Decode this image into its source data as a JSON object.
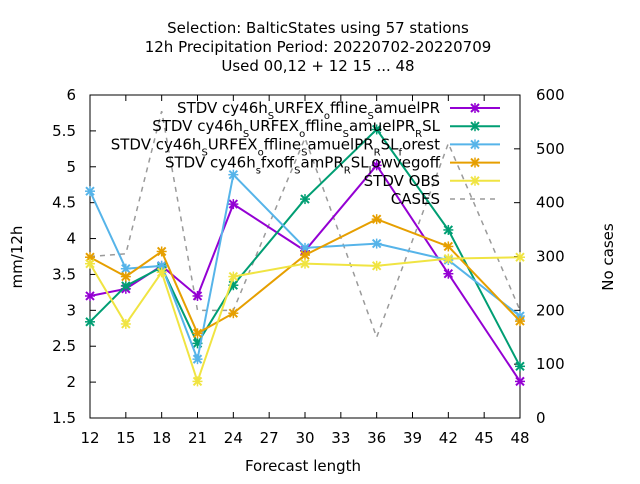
{
  "title_lines": [
    "Selection: BalticStates using    57 stations",
    "12h Precipitation    Period: 20220702-20220709",
    "Used  00,12  + 12 15 ... 48"
  ],
  "chart_data": {
    "type": "line",
    "xlabel": "Forecast length",
    "ylabel": "mm/12h",
    "y2label": "No cases",
    "x_ticks": [
      12,
      15,
      18,
      21,
      24,
      27,
      30,
      33,
      36,
      39,
      42,
      45,
      48
    ],
    "xlim": [
      12,
      48
    ],
    "ylim": [
      1.5,
      6
    ],
    "y_ticks": [
      1.5,
      2,
      2.5,
      3,
      3.5,
      4,
      4.5,
      5,
      5.5,
      6
    ],
    "y2lim": [
      0,
      600
    ],
    "y2_ticks": [
      0,
      100,
      200,
      300,
      400,
      500,
      600
    ],
    "grid": false,
    "legend_position": "top-right",
    "x": [
      12,
      15,
      18,
      21,
      24,
      30,
      36,
      42,
      48
    ],
    "series": [
      {
        "name": "STDV cy46h_S URFEX_o ffline_S amuelPR",
        "legend": [
          {
            "t": "STDV cy46h"
          },
          {
            "t": "S",
            "sub": true
          },
          {
            "t": "URFEX"
          },
          {
            "t": "o",
            "sub": true
          },
          {
            "t": "ffline"
          },
          {
            "t": "S",
            "sub": true
          },
          {
            "t": "amuelPR"
          }
        ],
        "color": "#9400d3",
        "marker": "x",
        "axis": "y1",
        "values": [
          3.2,
          3.3,
          3.62,
          3.2,
          4.48,
          3.83,
          5.02,
          3.51,
          2.01
        ]
      },
      {
        "name": "STDV cy46h_S URFEX_o ffline_S amuelPR_R SL",
        "legend": [
          {
            "t": "STDV cy46h"
          },
          {
            "t": "S",
            "sub": true
          },
          {
            "t": "URFEX"
          },
          {
            "t": "o",
            "sub": true
          },
          {
            "t": "ffline"
          },
          {
            "t": "S",
            "sub": true
          },
          {
            "t": "amuelPR"
          },
          {
            "t": "R",
            "sub": true
          },
          {
            "t": "SL"
          }
        ],
        "color": "#009e73",
        "marker": "x",
        "axis": "y1",
        "values": [
          2.84,
          3.34,
          3.6,
          2.54,
          3.35,
          4.55,
          5.52,
          4.12,
          2.22
        ]
      },
      {
        "name": "STDV cy46h_S URFEX_o ffline_S amuelPR_R SL_f orest",
        "legend": [
          {
            "t": "STDV cy46h"
          },
          {
            "t": "S",
            "sub": true
          },
          {
            "t": "URFEX"
          },
          {
            "t": "o",
            "sub": true
          },
          {
            "t": "ffline"
          },
          {
            "t": "S",
            "sub": true
          },
          {
            "t": "amuelPR"
          },
          {
            "t": "R",
            "sub": true
          },
          {
            "t": "SL"
          },
          {
            "t": "f",
            "sub": true
          },
          {
            "t": "orest"
          }
        ],
        "color": "#56b4e9",
        "marker": "x",
        "axis": "y1",
        "values": [
          4.66,
          3.58,
          3.62,
          2.32,
          4.89,
          3.87,
          3.93,
          3.7,
          2.92
        ]
      },
      {
        "name": "STDV cy46h_s fxoff_S amPR_R SL_l owvegoff",
        "legend": [
          {
            "t": "STDV cy46h"
          },
          {
            "t": "s",
            "sub": true
          },
          {
            "t": "fxoff"
          },
          {
            "t": "S",
            "sub": true
          },
          {
            "t": "amPR"
          },
          {
            "t": "R",
            "sub": true
          },
          {
            "t": "SL"
          },
          {
            "t": "l",
            "sub": true
          },
          {
            "t": "owvegoff"
          }
        ],
        "color": "#e69f00",
        "marker": "x",
        "axis": "y1",
        "values": [
          3.74,
          3.47,
          3.82,
          2.68,
          2.96,
          3.77,
          4.27,
          3.89,
          2.85
        ]
      },
      {
        "name": "STDV OBS",
        "legend": [
          {
            "t": "STDV OBS"
          }
        ],
        "color": "#f0e442",
        "marker": "x",
        "axis": "y1",
        "values": [
          3.65,
          2.81,
          3.53,
          2.01,
          3.47,
          3.65,
          3.62,
          3.72,
          3.74
        ]
      },
      {
        "name": "CASES",
        "legend": [
          {
            "t": "CASES"
          }
        ],
        "color": "#9a9a9a",
        "marker": "none",
        "dash": true,
        "axis": "y2",
        "values": [
          300,
          305,
          570,
          200,
          200,
          520,
          150,
          510,
          200
        ],
        "x": [
          12,
          15,
          18,
          21,
          24,
          30,
          36,
          42,
          48
        ],
        "extra_x": [],
        "note": ""
      }
    ]
  }
}
